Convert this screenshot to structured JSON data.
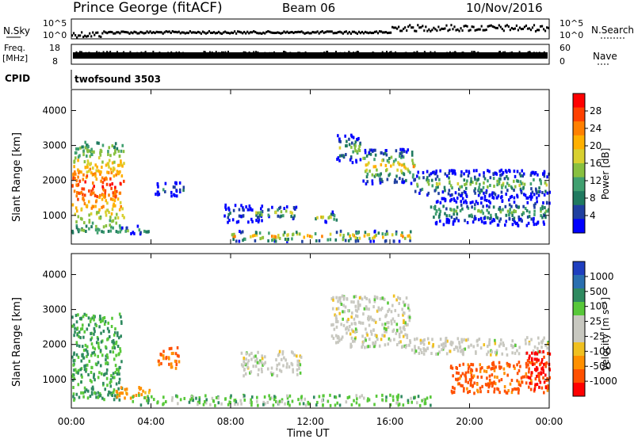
{
  "header": {
    "station": "Prince George (fitACF)",
    "beam": "Beam 06",
    "date": "10/Nov/2016"
  },
  "noise_panel": {
    "left_label": "N.Sky",
    "left_ticks": [
      "10^5",
      "10^0"
    ],
    "right_ticks": [
      "10^5",
      "10^0"
    ],
    "right_label": "N.Search"
  },
  "freq_panel": {
    "left_label_top": "Freq.",
    "left_label_unit": "[MHz]",
    "left_ticks": [
      "18",
      "8"
    ],
    "right_ticks": [
      "60",
      "0"
    ],
    "right_label": "Nave"
  },
  "cpid": {
    "label": "CPID",
    "value": "twofsound 3503"
  },
  "axes": {
    "ylabel": "Slant Range [km]",
    "yticks": [
      "4000",
      "3000",
      "2000",
      "1000"
    ],
    "ytick_values": [
      4000,
      3000,
      2000,
      1000
    ],
    "xticks": [
      "00:00",
      "04:00",
      "08:00",
      "12:00",
      "16:00",
      "20:00",
      "00:00"
    ],
    "xtick_values": [
      0,
      4,
      8,
      12,
      16,
      20,
      24
    ],
    "xlabel": "Time UT",
    "x_range": [
      0,
      24
    ],
    "y_range": [
      180,
      4600
    ]
  },
  "power_colorbar": {
    "label": "Power [dB]",
    "ticks": [
      "28",
      "24",
      "20",
      "16",
      "12",
      "8",
      "4"
    ],
    "colors": [
      "#ff0000",
      "#ff4000",
      "#ff8000",
      "#ffb000",
      "#d8d030",
      "#88c040",
      "#40a070",
      "#207a60",
      "#2040a0",
      "#0000ff"
    ]
  },
  "velocity_colorbar": {
    "label": "Velocity [m s⁻¹]",
    "ticks": [
      "1000",
      "500",
      "100",
      "25",
      "-25",
      "-100",
      "-500",
      "-1000"
    ],
    "colors": [
      "#1f3fbf",
      "#2a6fb0",
      "#2f8a60",
      "#58c83a",
      "#c8c8c0",
      "#c8c8c0",
      "#f0c020",
      "#ff9000",
      "#ff5000",
      "#ff0000"
    ]
  },
  "chart_data": {
    "type": "heatmap",
    "title": "Prince George (fitACF)",
    "xlabel": "Time UT",
    "ylabel": "Slant Range [km]",
    "xlim": [
      0,
      24
    ],
    "ylim": [
      180,
      4600
    ],
    "power_regions": [
      {
        "t0": 0.0,
        "t1": 2.6,
        "r0": 500,
        "r1": 3100,
        "core": 28
      },
      {
        "t0": 2.5,
        "t1": 3.9,
        "r0": 450,
        "r1": 700,
        "core": 14
      },
      {
        "t0": 4.1,
        "t1": 5.6,
        "r0": 1550,
        "r1": 1950,
        "core": 10
      },
      {
        "t0": 7.6,
        "t1": 9.6,
        "r0": 800,
        "r1": 1300,
        "core": 12
      },
      {
        "t0": 9.2,
        "t1": 11.4,
        "r0": 900,
        "r1": 1250,
        "core": 18
      },
      {
        "t0": 12.1,
        "t1": 13.3,
        "r0": 800,
        "r1": 1100,
        "core": 18
      },
      {
        "t0": 13.3,
        "t1": 14.6,
        "r0": 2500,
        "r1": 3300,
        "core": 16
      },
      {
        "t0": 14.6,
        "t1": 17.2,
        "r0": 1900,
        "r1": 2900,
        "core": 20
      },
      {
        "t0": 17.2,
        "t1": 24.0,
        "r0": 1500,
        "r1": 2300,
        "core": 16
      },
      {
        "t0": 18.0,
        "t1": 24.0,
        "r0": 700,
        "r1": 1500,
        "core": 14
      },
      {
        "t0": 8.0,
        "t1": 17.0,
        "r0": 250,
        "r1": 550,
        "core": 22
      }
    ],
    "velocity_regions": [
      {
        "t0": 0.0,
        "t1": 2.5,
        "r0": 400,
        "r1": 2900,
        "v": 60
      },
      {
        "t0": 2.2,
        "t1": 3.9,
        "r0": 450,
        "r1": 800,
        "v": -80
      },
      {
        "t0": 4.3,
        "t1": 5.4,
        "r0": 1300,
        "r1": 1950,
        "v": -300
      },
      {
        "t0": 8.5,
        "t1": 11.5,
        "r0": 1100,
        "r1": 1800,
        "v": 0
      },
      {
        "t0": 13.0,
        "t1": 17.0,
        "r0": 1900,
        "r1": 3400,
        "v": 0
      },
      {
        "t0": 17.0,
        "t1": 24.0,
        "r0": 1700,
        "r1": 2200,
        "v": 0
      },
      {
        "t0": 19.0,
        "t1": 24.0,
        "r0": 600,
        "r1": 1500,
        "v": -400
      },
      {
        "t0": 22.8,
        "t1": 24.0,
        "r0": 700,
        "r1": 1800,
        "v": -900
      },
      {
        "t0": 3.0,
        "t1": 18.0,
        "r0": 250,
        "r1": 550,
        "v": 40
      }
    ]
  }
}
